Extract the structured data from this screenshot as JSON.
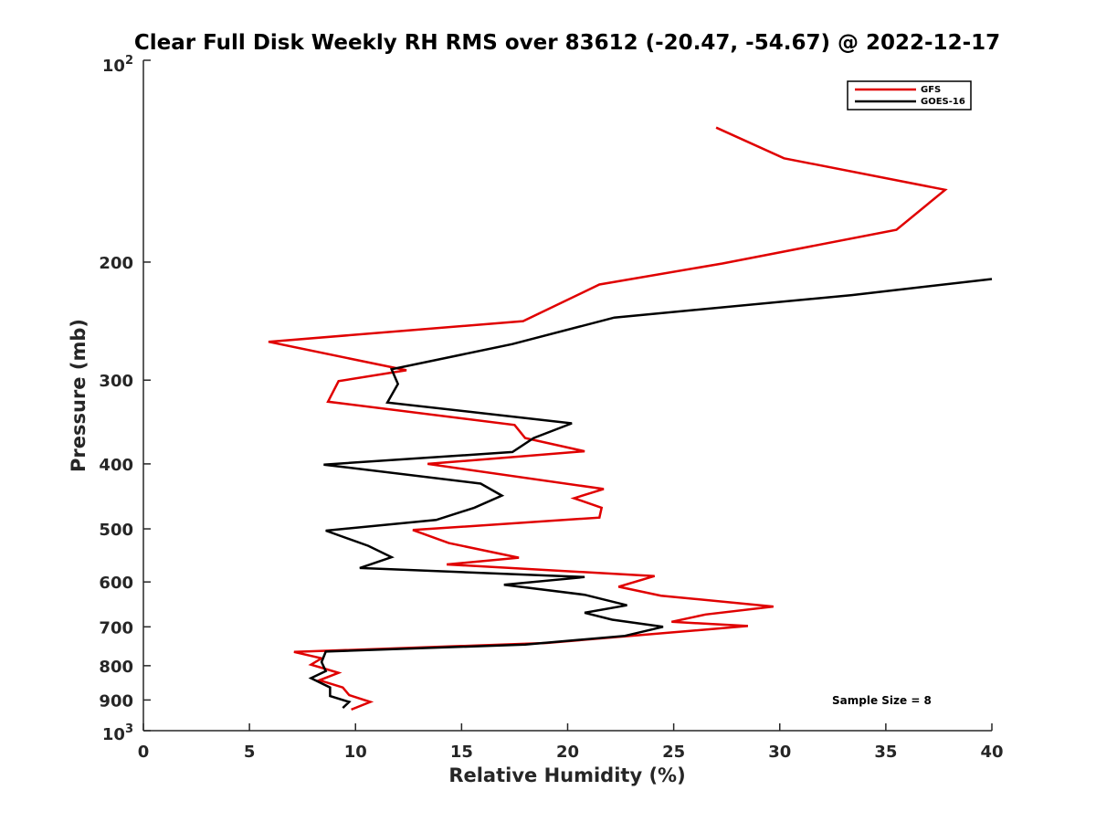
{
  "chart_data": {
    "type": "line",
    "title": "Clear Full Disk Weekly RH RMS over 83612 (-20.47, -54.67) @ 2022-12-17",
    "xlabel": "Relative Humidity (%)",
    "ylabel": "Pressure (mb)",
    "xlim": [
      0,
      40
    ],
    "ylim": [
      100,
      1000
    ],
    "y_scale": "log",
    "y_reversed": true,
    "grid": false,
    "legend_position": "top-right",
    "x_ticks": [
      "0",
      "5",
      "10",
      "15",
      "20",
      "25",
      "30",
      "35",
      "40"
    ],
    "y_tick_values": [
      200,
      300,
      400,
      500,
      600,
      700,
      800,
      900
    ],
    "y_tick_labels": [
      "200",
      "300",
      "400",
      "500",
      "600",
      "700",
      "800",
      "900"
    ],
    "y_top_label": {
      "base": "10",
      "exp": "2"
    },
    "y_bottom_label": {
      "base": "10",
      "exp": "3"
    },
    "annotation": "Sample Size = 8",
    "series": [
      {
        "name": "GFS",
        "color": "#e00000",
        "points": [
          [
            27.0,
            126
          ],
          [
            30.2,
            140
          ],
          [
            37.8,
            156
          ],
          [
            35.5,
            179
          ],
          [
            27.3,
            201
          ],
          [
            21.5,
            216
          ],
          [
            17.9,
            245
          ],
          [
            5.9,
            263
          ],
          [
            12.4,
            290
          ],
          [
            9.2,
            301
          ],
          [
            8.7,
            323
          ],
          [
            17.5,
            350
          ],
          [
            18.0,
            366
          ],
          [
            20.8,
            383
          ],
          [
            13.4,
            400
          ],
          [
            21.7,
            436
          ],
          [
            20.3,
            450
          ],
          [
            21.6,
            465
          ],
          [
            21.5,
            481
          ],
          [
            12.7,
            502
          ],
          [
            14.4,
            525
          ],
          [
            17.7,
            552
          ],
          [
            14.3,
            565
          ],
          [
            24.1,
            588
          ],
          [
            22.4,
            610
          ],
          [
            24.4,
            629
          ],
          [
            29.7,
            653
          ],
          [
            26.5,
            671
          ],
          [
            24.9,
            688
          ],
          [
            28.5,
            698
          ],
          [
            19.0,
            740
          ],
          [
            7.1,
            763
          ],
          [
            8.4,
            780
          ],
          [
            7.9,
            797
          ],
          [
            9.2,
            820
          ],
          [
            8.3,
            841
          ],
          [
            9.4,
            862
          ],
          [
            9.7,
            885
          ],
          [
            10.7,
            906
          ],
          [
            9.8,
            930
          ]
        ]
      },
      {
        "name": "GOES-16",
        "color": "#000000",
        "points": [
          [
            40.0,
            212
          ],
          [
            33.4,
            224
          ],
          [
            22.2,
            242
          ],
          [
            17.4,
            265
          ],
          [
            11.7,
            289
          ],
          [
            12.0,
            304
          ],
          [
            11.5,
            324
          ],
          [
            20.2,
            348
          ],
          [
            18.4,
            366
          ],
          [
            17.4,
            384
          ],
          [
            8.5,
            401
          ],
          [
            15.9,
            428
          ],
          [
            16.9,
            446
          ],
          [
            15.6,
            465
          ],
          [
            13.8,
            485
          ],
          [
            8.6,
            503
          ],
          [
            10.6,
            530
          ],
          [
            11.7,
            551
          ],
          [
            10.2,
            572
          ],
          [
            20.8,
            590
          ],
          [
            17.0,
            606
          ],
          [
            20.8,
            627
          ],
          [
            22.8,
            650
          ],
          [
            20.8,
            667
          ],
          [
            22.1,
            683
          ],
          [
            24.5,
            700
          ],
          [
            22.7,
            722
          ],
          [
            18.0,
            744
          ],
          [
            8.6,
            762
          ],
          [
            8.4,
            790
          ],
          [
            8.6,
            815
          ],
          [
            7.9,
            835
          ],
          [
            8.8,
            862
          ],
          [
            8.8,
            888
          ],
          [
            9.7,
            906
          ],
          [
            9.4,
            925
          ]
        ]
      }
    ]
  }
}
